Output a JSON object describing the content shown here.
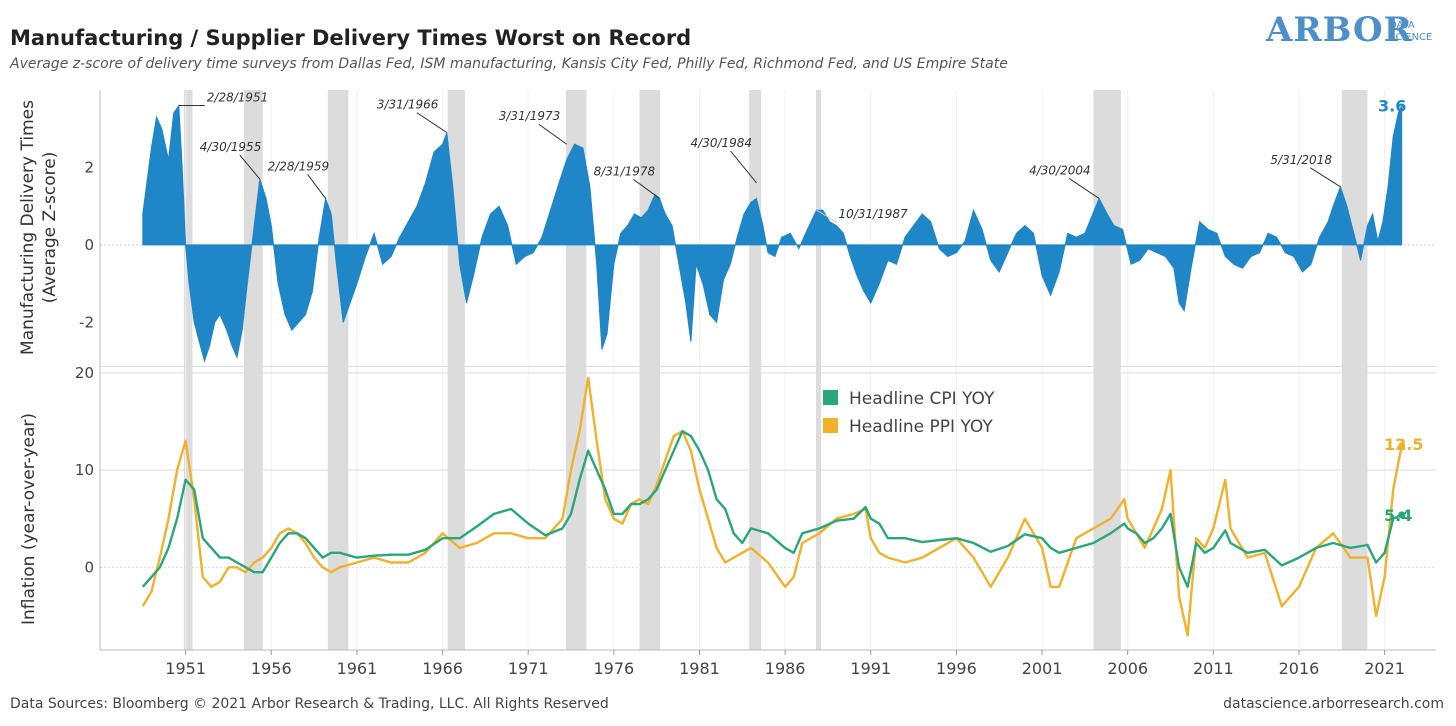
{
  "header": {
    "title": "Manufacturing / Supplier Delivery Times Worst on Record",
    "subtitle": "Average z-score of delivery time surveys from Dallas Fed, ISM manufacturing, Kansis City Fed, Philly Fed, Richmond Fed, and US Empire State"
  },
  "logo": {
    "big": "ARBOR",
    "small1": "DATA",
    "small2": "SCIENCE"
  },
  "footer": {
    "source": "Data Sources: Bloomberg © 2021 Arbor Research & Trading, LLC. All Rights Reserved",
    "url": "datascience.arborresearch.com"
  },
  "colors": {
    "delivery": "#1f86c8",
    "cpi": "#2aa67c",
    "ppi": "#f2b12a",
    "recession": "#dcdcdc"
  },
  "chart_data": [
    {
      "type": "area",
      "ylabel": "Manufacturing Delivery Times\n(Average Z-score)",
      "yticks": [
        -2,
        0,
        2
      ],
      "ylim": [
        -3.1,
        4.0
      ],
      "xlim": [
        1946.0,
        2024.0
      ],
      "xticks": [
        "1951",
        "1956",
        "1961",
        "1966",
        "1971",
        "1976",
        "1981",
        "1986",
        "1991",
        "1996",
        "2001",
        "2006",
        "2011",
        "2016",
        "2021"
      ],
      "recessions": [
        [
          1950.9,
          1951.4
        ],
        [
          1954.4,
          1955.5
        ],
        [
          1959.3,
          1960.5
        ],
        [
          1966.3,
          1967.3
        ],
        [
          1973.2,
          1974.4
        ],
        [
          1977.5,
          1978.7
        ],
        [
          1983.9,
          1984.6
        ],
        [
          1987.8,
          1988.1
        ],
        [
          2004.0,
          2005.6
        ],
        [
          2018.5,
          2020.0
        ]
      ],
      "series": [
        {
          "name": "Manufacturing Delivery Times",
          "x": [
            1948.5,
            1949.0,
            1949.3,
            1949.6,
            1950.0,
            1950.3,
            1950.6,
            1950.8,
            1951.0,
            1951.2,
            1951.5,
            1951.8,
            1952.1,
            1952.4,
            1952.7,
            1953.0,
            1953.4,
            1953.7,
            1954.0,
            1954.3,
            1954.6,
            1955.0,
            1955.33,
            1955.7,
            1956.0,
            1956.4,
            1956.8,
            1957.2,
            1957.6,
            1958.0,
            1958.4,
            1958.8,
            1959.17,
            1959.5,
            1959.8,
            1960.2,
            1960.6,
            1961.0,
            1961.5,
            1962.0,
            1962.5,
            1963.0,
            1963.5,
            1964.0,
            1964.5,
            1965.0,
            1965.5,
            1966.0,
            1966.25,
            1966.6,
            1967.0,
            1967.4,
            1967.8,
            1968.3,
            1968.8,
            1969.3,
            1969.8,
            1970.3,
            1970.8,
            1971.3,
            1971.8,
            1972.3,
            1972.8,
            1973.25,
            1973.7,
            1974.2,
            1974.6,
            1975.0,
            1975.3,
            1975.6,
            1976.0,
            1976.4,
            1976.8,
            1977.2,
            1977.6,
            1978.0,
            1978.4,
            1978.67,
            1979.0,
            1979.4,
            1979.8,
            1980.2,
            1980.5,
            1980.8,
            1981.2,
            1981.6,
            1982.0,
            1982.4,
            1982.8,
            1983.2,
            1983.6,
            1984.0,
            1984.33,
            1984.7,
            1985.0,
            1985.4,
            1985.8,
            1986.3,
            1986.8,
            1987.3,
            1987.83,
            1988.2,
            1988.6,
            1989.0,
            1989.4,
            1989.8,
            1990.2,
            1990.6,
            1991.0,
            1991.5,
            1992.0,
            1992.5,
            1993.0,
            1993.5,
            1994.0,
            1994.5,
            1995.0,
            1995.5,
            1996.0,
            1996.5,
            1997.0,
            1997.5,
            1998.0,
            1998.5,
            1999.0,
            1999.5,
            2000.0,
            2000.5,
            2001.0,
            2001.5,
            2002.0,
            2002.5,
            2003.0,
            2003.5,
            2004.33,
            2004.8,
            2005.2,
            2005.7,
            2006.2,
            2006.7,
            2007.2,
            2007.7,
            2008.2,
            2008.7,
            2009.0,
            2009.3,
            2009.7,
            2010.2,
            2010.7,
            2011.2,
            2011.7,
            2012.2,
            2012.7,
            2013.2,
            2013.7,
            2014.2,
            2014.7,
            2015.2,
            2015.7,
            2016.2,
            2016.7,
            2017.2,
            2017.7,
            2018.0,
            2018.42,
            2018.8,
            2019.2,
            2019.6,
            2020.0,
            2020.3,
            2020.6,
            2020.9,
            2021.2,
            2021.5,
            2021.8,
            2022.0
          ],
          "y": [
            0.8,
            2.5,
            3.3,
            3.0,
            2.2,
            3.4,
            3.6,
            2.0,
            0.0,
            -1.0,
            -2.0,
            -2.5,
            -3.0,
            -2.6,
            -2.0,
            -1.8,
            -2.2,
            -2.6,
            -2.9,
            -2.2,
            -1.0,
            0.5,
            1.7,
            1.2,
            0.5,
            -1.0,
            -1.8,
            -2.2,
            -2.0,
            -1.8,
            -1.2,
            0.2,
            1.2,
            0.8,
            -0.5,
            -2.0,
            -1.5,
            -1.0,
            -0.3,
            0.3,
            -0.5,
            -0.3,
            0.2,
            0.6,
            1.0,
            1.6,
            2.4,
            2.6,
            2.9,
            1.5,
            -0.5,
            -1.5,
            -0.8,
            0.2,
            0.8,
            1.0,
            0.5,
            -0.5,
            -0.3,
            -0.2,
            0.2,
            0.9,
            1.6,
            2.2,
            2.6,
            2.5,
            1.5,
            -0.5,
            -2.7,
            -2.3,
            -0.5,
            0.3,
            0.5,
            0.8,
            0.7,
            0.9,
            1.3,
            1.2,
            0.8,
            0.5,
            -0.5,
            -1.5,
            -2.5,
            -0.5,
            -1.0,
            -1.8,
            -2.0,
            -0.9,
            -0.5,
            0.2,
            0.8,
            1.1,
            1.2,
            0.5,
            -0.2,
            -0.3,
            0.2,
            0.3,
            -0.1,
            0.4,
            0.9,
            0.9,
            0.6,
            0.5,
            0.3,
            -0.3,
            -0.8,
            -1.2,
            -1.5,
            -1.0,
            -0.4,
            -0.5,
            0.2,
            0.5,
            0.8,
            0.6,
            -0.1,
            -0.3,
            -0.2,
            0.1,
            0.9,
            0.4,
            -0.4,
            -0.7,
            -0.2,
            0.3,
            0.5,
            0.3,
            -0.8,
            -1.3,
            -0.7,
            0.3,
            0.2,
            0.3,
            1.2,
            0.8,
            0.5,
            0.4,
            -0.5,
            -0.4,
            -0.1,
            -0.2,
            -0.3,
            -0.6,
            -1.5,
            -1.7,
            -0.6,
            0.6,
            0.4,
            0.3,
            -0.3,
            -0.5,
            -0.6,
            -0.3,
            -0.2,
            0.3,
            0.2,
            -0.2,
            -0.3,
            -0.7,
            -0.5,
            0.2,
            0.6,
            1.0,
            1.5,
            1.0,
            0.3,
            -0.4,
            0.5,
            0.8,
            0.1,
            0.6,
            1.5,
            2.8,
            3.4,
            3.6
          ]
        }
      ],
      "annotations": [
        {
          "label": "2/28/1951",
          "x": 1950.6,
          "y": 3.6
        },
        {
          "label": "4/30/1955",
          "x": 1955.33,
          "y": 1.7
        },
        {
          "label": "2/28/1959",
          "x": 1959.17,
          "y": 1.2
        },
        {
          "label": "3/31/1966",
          "x": 1966.25,
          "y": 2.9
        },
        {
          "label": "3/31/1973",
          "x": 1973.25,
          "y": 2.6
        },
        {
          "label": "8/31/1978",
          "x": 1978.67,
          "y": 1.2
        },
        {
          "label": "4/30/1984",
          "x": 1984.33,
          "y": 1.6
        },
        {
          "label": "10/31/1987",
          "x": 1987.83,
          "y": 0.9
        },
        {
          "label": "4/30/2004",
          "x": 2004.33,
          "y": 1.2
        },
        {
          "label": "5/31/2018",
          "x": 2018.42,
          "y": 1.5
        }
      ],
      "end_label": "3.6"
    },
    {
      "type": "line",
      "ylabel": "Inflation (year-over-year)",
      "yticks": [
        0,
        10,
        20
      ],
      "ylim": [
        -8.5,
        20.5
      ],
      "legend": [
        "Headline CPI YOY",
        "Headline PPI YOY"
      ],
      "series": [
        {
          "name": "Headline CPI YOY",
          "x": [
            1948.5,
            1949.0,
            1949.5,
            1950.0,
            1950.5,
            1951.0,
            1951.5,
            1952.0,
            1952.5,
            1953.0,
            1953.5,
            1954.0,
            1954.5,
            1955.0,
            1955.5,
            1956.0,
            1956.5,
            1957.0,
            1957.5,
            1958.0,
            1958.5,
            1959.0,
            1959.5,
            1960.0,
            1961.0,
            1962.0,
            1963.0,
            1964.0,
            1965.0,
            1966.0,
            1967.0,
            1968.0,
            1969.0,
            1970.0,
            1971.0,
            1972.0,
            1973.0,
            1973.5,
            1974.0,
            1974.5,
            1975.0,
            1975.5,
            1976.0,
            1976.5,
            1977.0,
            1977.5,
            1978.0,
            1978.5,
            1979.0,
            1979.5,
            1980.0,
            1980.5,
            1981.0,
            1981.5,
            1982.0,
            1982.5,
            1983.0,
            1983.5,
            1984.0,
            1985.0,
            1986.0,
            1986.5,
            1987.0,
            1988.0,
            1989.0,
            1990.0,
            1990.7,
            1991.0,
            1991.5,
            1992.0,
            1993.0,
            1994.0,
            1995.0,
            1996.0,
            1997.0,
            1998.0,
            1999.0,
            2000.0,
            2001.0,
            2001.5,
            2002.0,
            2003.0,
            2004.0,
            2005.0,
            2005.8,
            2006.0,
            2006.5,
            2007.0,
            2007.5,
            2008.0,
            2008.5,
            2009.0,
            2009.5,
            2010.0,
            2010.5,
            2011.0,
            2011.7,
            2012.0,
            2013.0,
            2014.0,
            2015.0,
            2016.0,
            2017.0,
            2018.0,
            2019.0,
            2020.0,
            2020.5,
            2021.0,
            2021.5,
            2022.0
          ],
          "y": [
            -2.0,
            -1.0,
            0.0,
            2.0,
            5.0,
            9.0,
            8.0,
            3.0,
            2.0,
            1.0,
            1.0,
            0.5,
            0.0,
            -0.5,
            -0.5,
            1.0,
            2.5,
            3.5,
            3.5,
            3.0,
            2.0,
            1.0,
            1.5,
            1.5,
            1.0,
            1.2,
            1.3,
            1.3,
            1.8,
            3.0,
            3.0,
            4.2,
            5.5,
            6.0,
            4.5,
            3.3,
            4.0,
            5.5,
            9.0,
            12.0,
            10.0,
            8.0,
            5.5,
            5.5,
            6.5,
            6.5,
            7.0,
            8.0,
            10.0,
            12.0,
            14.0,
            13.5,
            12.0,
            10.0,
            7.0,
            6.0,
            3.5,
            2.5,
            4.0,
            3.5,
            2.0,
            1.5,
            3.5,
            4.0,
            4.8,
            5.0,
            6.2,
            5.0,
            4.5,
            3.0,
            3.0,
            2.6,
            2.8,
            3.0,
            2.5,
            1.6,
            2.2,
            3.4,
            3.0,
            2.0,
            1.5,
            2.0,
            2.5,
            3.5,
            4.5,
            4.0,
            3.5,
            2.5,
            3.0,
            4.0,
            5.5,
            0.0,
            -2.0,
            2.5,
            1.5,
            2.0,
            3.8,
            2.5,
            1.5,
            1.8,
            0.2,
            1.0,
            2.0,
            2.5,
            2.0,
            2.3,
            0.5,
            1.5,
            5.0,
            5.4
          ]
        },
        {
          "name": "Headline PPI YOY",
          "x": [
            1948.5,
            1949.0,
            1949.5,
            1950.0,
            1950.5,
            1951.0,
            1951.5,
            1952.0,
            1952.5,
            1953.0,
            1953.5,
            1954.0,
            1954.5,
            1955.0,
            1955.5,
            1956.0,
            1956.5,
            1957.0,
            1957.5,
            1958.0,
            1958.5,
            1959.0,
            1959.5,
            1960.0,
            1961.0,
            1962.0,
            1963.0,
            1964.0,
            1965.0,
            1966.0,
            1967.0,
            1968.0,
            1969.0,
            1970.0,
            1971.0,
            1972.0,
            1973.0,
            1973.5,
            1974.0,
            1974.5,
            1975.0,
            1975.5,
            1976.0,
            1976.5,
            1977.0,
            1977.5,
            1978.0,
            1978.5,
            1979.0,
            1979.5,
            1980.0,
            1980.5,
            1981.0,
            1981.5,
            1982.0,
            1982.5,
            1983.0,
            1983.5,
            1984.0,
            1985.0,
            1986.0,
            1986.5,
            1987.0,
            1988.0,
            1989.0,
            1990.0,
            1990.7,
            1991.0,
            1991.5,
            1992.0,
            1993.0,
            1994.0,
            1995.0,
            1996.0,
            1997.0,
            1998.0,
            1999.0,
            2000.0,
            2001.0,
            2001.5,
            2002.0,
            2003.0,
            2004.0,
            2005.0,
            2005.8,
            2006.0,
            2006.5,
            2007.0,
            2007.5,
            2008.0,
            2008.5,
            2009.0,
            2009.5,
            2010.0,
            2010.5,
            2011.0,
            2011.7,
            2012.0,
            2013.0,
            2014.0,
            2015.0,
            2016.0,
            2017.0,
            2018.0,
            2019.0,
            2020.0,
            2020.5,
            2021.0,
            2021.5,
            2022.0
          ],
          "y": [
            -4.0,
            -2.5,
            1.0,
            5.0,
            10.0,
            13.0,
            7.0,
            -1.0,
            -2.0,
            -1.5,
            0.0,
            0.0,
            -0.5,
            0.5,
            1.0,
            2.0,
            3.5,
            4.0,
            3.5,
            2.5,
            1.0,
            0.0,
            -0.5,
            0.0,
            0.5,
            1.0,
            0.5,
            0.5,
            1.5,
            3.5,
            2.0,
            2.5,
            3.5,
            3.5,
            3.0,
            3.0,
            5.0,
            10.0,
            14.0,
            19.5,
            13.0,
            7.0,
            5.0,
            4.5,
            6.5,
            7.0,
            6.5,
            8.5,
            11.0,
            13.5,
            14.0,
            12.0,
            8.0,
            5.0,
            2.0,
            0.5,
            1.0,
            1.5,
            2.0,
            0.5,
            -2.0,
            -1.0,
            2.5,
            3.5,
            5.0,
            5.5,
            6.0,
            3.0,
            1.5,
            1.0,
            0.5,
            1.0,
            2.0,
            3.0,
            1.0,
            -2.0,
            1.0,
            5.0,
            2.0,
            -2.0,
            -2.0,
            3.0,
            4.0,
            5.0,
            7.0,
            5.0,
            3.5,
            2.0,
            4.0,
            6.0,
            10.0,
            -3.0,
            -7.0,
            3.0,
            2.0,
            4.0,
            9.0,
            4.0,
            1.0,
            1.5,
            -4.0,
            -2.0,
            2.0,
            3.5,
            1.0,
            1.0,
            -5.0,
            -1.0,
            8.0,
            12.5
          ]
        }
      ],
      "end_labels": {
        "cpi": "5.4",
        "ppi": "12.5"
      }
    }
  ]
}
